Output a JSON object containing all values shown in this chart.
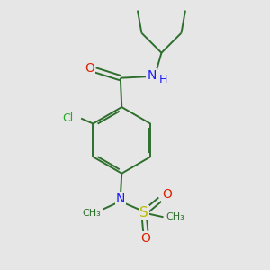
{
  "background_color": "#e6e6e6",
  "bond_color": "#2d6e2d",
  "atom_colors": {
    "O": "#dd2200",
    "N": "#1a1aff",
    "Cl": "#22aa22",
    "S": "#bbbb00",
    "C": "#2d6e2d",
    "H": "#1a1aff"
  },
  "figsize": [
    3.0,
    3.0
  ],
  "dpi": 100,
  "lw": 1.4
}
